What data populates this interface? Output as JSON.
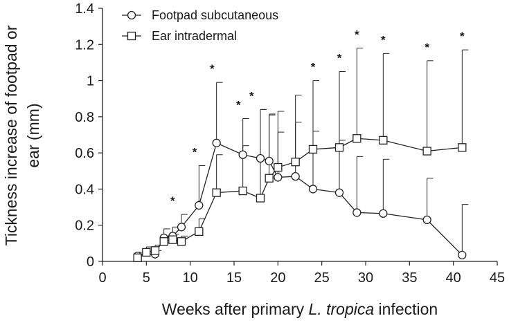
{
  "chart_data": {
    "type": "line",
    "xlabel_parts": [
      "Weeks after primary ",
      "L. tropica",
      " infection"
    ],
    "ylabel_lines": [
      "Tickness increase of footpad or",
      "ear (mm)"
    ],
    "xlim": [
      0,
      45
    ],
    "ylim": [
      0,
      1.4
    ],
    "xticks": [
      0,
      5,
      10,
      15,
      20,
      25,
      30,
      35,
      40,
      45
    ],
    "yticks": [
      0,
      0.2,
      0.4,
      0.6,
      0.8,
      1,
      1.2,
      1.4
    ],
    "ytick_labels": [
      "0",
      "0.2",
      "0.4",
      "0.6",
      "0.8",
      "1",
      "1.2",
      "1.4"
    ],
    "legend_position": "top-left",
    "significance_marker": "*",
    "series": [
      {
        "name": "Footpad subcutaneous",
        "marker": "circle",
        "x": [
          4,
          6,
          7,
          8,
          9,
          11,
          13,
          16,
          18,
          19,
          20,
          22,
          24,
          27,
          29,
          32,
          37,
          41
        ],
        "y": [
          0.03,
          0.04,
          0.13,
          0.14,
          0.19,
          0.31,
          0.655,
          0.59,
          0.57,
          0.555,
          0.465,
          0.47,
          0.4,
          0.38,
          0.27,
          0.265,
          0.23,
          0.035
        ],
        "err": [
          0.02,
          0.02,
          0.05,
          0.05,
          0.07,
          0.22,
          0.335,
          0.2,
          0.27,
          0.26,
          0.25,
          0.3,
          0.32,
          0.29,
          0.31,
          0.3,
          0.23,
          0.28
        ]
      },
      {
        "name": "Ear intradermal",
        "marker": "square",
        "x": [
          4,
          5,
          6,
          7,
          8,
          9,
          11,
          13,
          16,
          18,
          19,
          20,
          22,
          24,
          27,
          29,
          32,
          37,
          41
        ],
        "y": [
          0.02,
          0.05,
          0.06,
          0.11,
          0.12,
          0.11,
          0.165,
          0.38,
          0.39,
          0.35,
          0.46,
          0.52,
          0.55,
          0.62,
          0.63,
          0.68,
          0.67,
          0.61,
          0.63
        ],
        "err": [
          0.02,
          0.03,
          0.03,
          0.03,
          0.03,
          0.03,
          0.07,
          0.21,
          0.25,
          0.49,
          0.35,
          0.31,
          0.37,
          0.38,
          0.42,
          0.5,
          0.48,
          0.5,
          0.54
        ]
      }
    ],
    "significance_weeks": [
      8,
      10.5,
      12.5,
      15.5,
      17,
      24,
      27,
      29,
      32,
      37,
      41
    ]
  }
}
